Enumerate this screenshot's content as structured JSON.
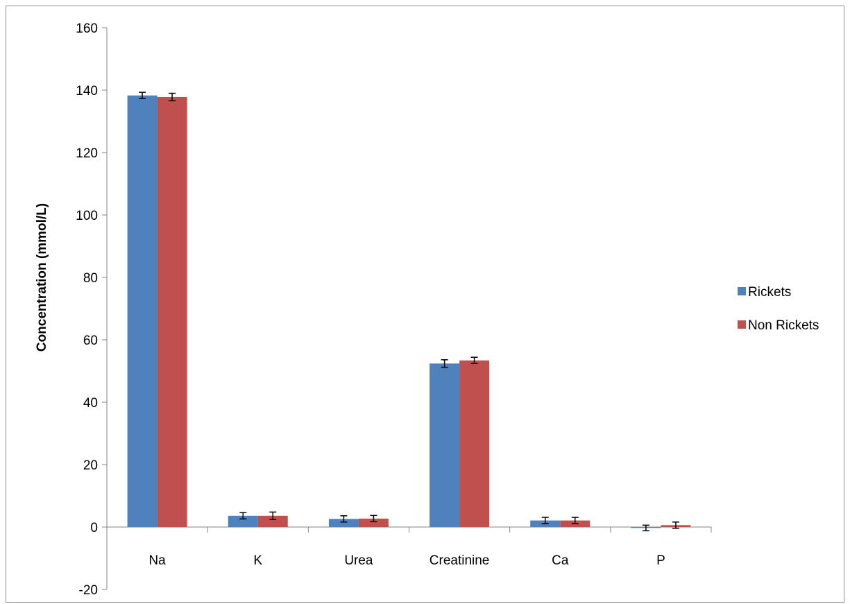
{
  "chart_data": {
    "type": "bar",
    "title": "",
    "xlabel": "",
    "ylabel": "Concentration (mmol/L)",
    "ylim": [
      -20,
      160
    ],
    "yticks": [
      -20,
      0,
      20,
      40,
      60,
      80,
      100,
      120,
      140,
      160
    ],
    "grid": false,
    "legend_position": "right",
    "error_bars": true,
    "categories": [
      "Na",
      "K",
      "Urea",
      "Creatinine",
      "Ca",
      "P"
    ],
    "series": [
      {
        "name": "Rickets",
        "color": "#4f81bd",
        "values": [
          138.3,
          3.6,
          2.6,
          52.4,
          2.1,
          -0.3
        ],
        "errors": [
          1.0,
          1.0,
          1.0,
          1.2,
          1.0,
          0.9
        ]
      },
      {
        "name": "Non Rickets",
        "color": "#c0504d",
        "values": [
          137.8,
          3.6,
          2.7,
          53.4,
          2.1,
          0.6
        ],
        "errors": [
          1.2,
          1.2,
          1.0,
          1.0,
          1.0,
          1.0
        ]
      }
    ]
  }
}
